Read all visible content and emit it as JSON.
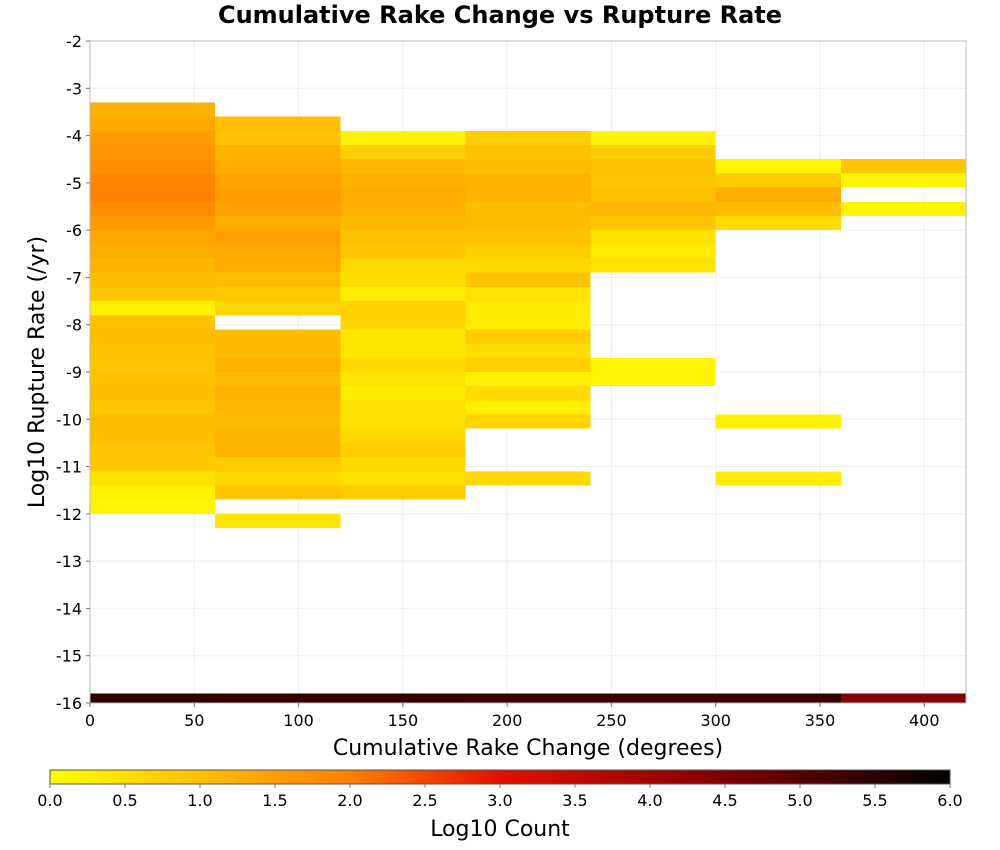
{
  "chart_data": {
    "type": "heatmap",
    "title": "Cumulative Rake Change vs Rupture Rate",
    "xlabel": "Cumulative Rake Change (degrees)",
    "ylabel": "Log10 Rupture Rate (/yr)",
    "xlim": [
      0,
      420
    ],
    "ylim": [
      -16,
      -2
    ],
    "x_ticks": [
      0,
      50,
      100,
      150,
      200,
      250,
      300,
      350,
      400
    ],
    "y_ticks": [
      -2,
      -3,
      -4,
      -5,
      -6,
      -7,
      -8,
      -9,
      -10,
      -11,
      -12,
      -13,
      -14,
      -15,
      -16
    ],
    "x_bin_width": 60,
    "y_bin_height": 0.3,
    "grid": true,
    "colorbar": {
      "label": "Log10 Count",
      "range": [
        0,
        6
      ],
      "ticks": [
        "0.0",
        "0.5",
        "1.0",
        "1.5",
        "2.0",
        "2.5",
        "3.0",
        "3.5",
        "4.0",
        "4.5",
        "5.0",
        "5.5",
        "6.0"
      ],
      "stops": [
        {
          "v": 0.0,
          "color": "#ffff00"
        },
        {
          "v": 2.0,
          "color": "#ff7f00"
        },
        {
          "v": 3.0,
          "color": "#e01000"
        },
        {
          "v": 4.5,
          "color": "#800000"
        },
        {
          "v": 6.0,
          "color": "#000000"
        }
      ]
    },
    "columns": [
      {
        "x0": 0,
        "x1": 60,
        "cells": [
          {
            "y0": -3.6,
            "y1": -3.3,
            "v": 1.25
          },
          {
            "y0": -3.9,
            "y1": -3.6,
            "v": 1.35
          },
          {
            "y0": -4.2,
            "y1": -3.9,
            "v": 1.55
          },
          {
            "y0": -4.5,
            "y1": -4.2,
            "v": 1.65
          },
          {
            "y0": -4.8,
            "y1": -4.5,
            "v": 1.75
          },
          {
            "y0": -5.1,
            "y1": -4.8,
            "v": 1.9
          },
          {
            "y0": -5.4,
            "y1": -5.1,
            "v": 1.95
          },
          {
            "y0": -5.7,
            "y1": -5.4,
            "v": 1.8
          },
          {
            "y0": -6.0,
            "y1": -5.7,
            "v": 1.55
          },
          {
            "y0": -6.3,
            "y1": -6.0,
            "v": 1.4
          },
          {
            "y0": -6.6,
            "y1": -6.3,
            "v": 1.3
          },
          {
            "y0": -6.9,
            "y1": -6.6,
            "v": 1.15
          },
          {
            "y0": -7.2,
            "y1": -6.9,
            "v": 1.0
          },
          {
            "y0": -7.5,
            "y1": -7.2,
            "v": 0.9
          },
          {
            "y0": -7.8,
            "y1": -7.5,
            "v": 0.2
          },
          {
            "y0": -8.1,
            "y1": -7.8,
            "v": 0.95
          },
          {
            "y0": -8.4,
            "y1": -8.1,
            "v": 1.0
          },
          {
            "y0": -8.7,
            "y1": -8.4,
            "v": 0.95
          },
          {
            "y0": -9.0,
            "y1": -8.7,
            "v": 0.9
          },
          {
            "y0": -9.3,
            "y1": -9.0,
            "v": 0.95
          },
          {
            "y0": -9.6,
            "y1": -9.3,
            "v": 1.0
          },
          {
            "y0": -9.9,
            "y1": -9.6,
            "v": 0.9
          },
          {
            "y0": -10.2,
            "y1": -9.9,
            "v": 1.05
          },
          {
            "y0": -10.5,
            "y1": -10.2,
            "v": 1.0
          },
          {
            "y0": -10.8,
            "y1": -10.5,
            "v": 0.9
          },
          {
            "y0": -11.1,
            "y1": -10.8,
            "v": 0.85
          },
          {
            "y0": -11.4,
            "y1": -11.1,
            "v": 0.45
          },
          {
            "y0": -11.7,
            "y1": -11.4,
            "v": 0.2
          },
          {
            "y0": -12.0,
            "y1": -11.7,
            "v": 0.15
          },
          {
            "y0": -16.0,
            "y1": -15.8,
            "v": 5.45
          }
        ]
      },
      {
        "x0": 60,
        "x1": 120,
        "cells": [
          {
            "y0": -3.9,
            "y1": -3.6,
            "v": 1.0
          },
          {
            "y0": -4.2,
            "y1": -3.9,
            "v": 0.95
          },
          {
            "y0": -4.5,
            "y1": -4.2,
            "v": 1.2
          },
          {
            "y0": -4.8,
            "y1": -4.5,
            "v": 1.3
          },
          {
            "y0": -5.1,
            "y1": -4.8,
            "v": 1.45
          },
          {
            "y0": -5.4,
            "y1": -5.1,
            "v": 1.55
          },
          {
            "y0": -5.7,
            "y1": -5.4,
            "v": 1.45
          },
          {
            "y0": -6.0,
            "y1": -5.7,
            "v": 1.3
          },
          {
            "y0": -6.3,
            "y1": -6.0,
            "v": 1.5
          },
          {
            "y0": -6.6,
            "y1": -6.3,
            "v": 1.35
          },
          {
            "y0": -6.9,
            "y1": -6.6,
            "v": 1.3
          },
          {
            "y0": -7.2,
            "y1": -6.9,
            "v": 1.0
          },
          {
            "y0": -7.5,
            "y1": -7.2,
            "v": 0.85
          },
          {
            "y0": -7.8,
            "y1": -7.5,
            "v": 0.65
          },
          {
            "y0": -8.4,
            "y1": -8.1,
            "v": 1.05
          },
          {
            "y0": -8.7,
            "y1": -8.4,
            "v": 1.1
          },
          {
            "y0": -9.0,
            "y1": -8.7,
            "v": 1.2
          },
          {
            "y0": -9.3,
            "y1": -9.0,
            "v": 1.05
          },
          {
            "y0": -9.6,
            "y1": -9.3,
            "v": 1.2
          },
          {
            "y0": -9.9,
            "y1": -9.6,
            "v": 1.1
          },
          {
            "y0": -10.2,
            "y1": -9.9,
            "v": 1.0
          },
          {
            "y0": -10.5,
            "y1": -10.2,
            "v": 1.15
          },
          {
            "y0": -10.8,
            "y1": -10.5,
            "v": 1.15
          },
          {
            "y0": -11.1,
            "y1": -10.8,
            "v": 0.8
          },
          {
            "y0": -11.4,
            "y1": -11.1,
            "v": 0.6
          },
          {
            "y0": -11.7,
            "y1": -11.4,
            "v": 0.9
          },
          {
            "y0": -12.3,
            "y1": -12.0,
            "v": 0.4
          },
          {
            "y0": -16.0,
            "y1": -15.8,
            "v": 5.4
          }
        ]
      },
      {
        "x0": 120,
        "x1": 180,
        "cells": [
          {
            "y0": -4.2,
            "y1": -3.9,
            "v": 0.2
          },
          {
            "y0": -4.5,
            "y1": -4.2,
            "v": 0.75
          },
          {
            "y0": -4.8,
            "y1": -4.5,
            "v": 1.1
          },
          {
            "y0": -5.1,
            "y1": -4.8,
            "v": 1.25
          },
          {
            "y0": -5.4,
            "y1": -5.1,
            "v": 1.3
          },
          {
            "y0": -5.7,
            "y1": -5.4,
            "v": 1.25
          },
          {
            "y0": -6.0,
            "y1": -5.7,
            "v": 1.1
          },
          {
            "y0": -6.3,
            "y1": -6.0,
            "v": 0.95
          },
          {
            "y0": -6.6,
            "y1": -6.3,
            "v": 0.9
          },
          {
            "y0": -6.9,
            "y1": -6.6,
            "v": 0.6
          },
          {
            "y0": -7.2,
            "y1": -6.9,
            "v": 0.55
          },
          {
            "y0": -7.5,
            "y1": -7.2,
            "v": 0.3
          },
          {
            "y0": -7.8,
            "y1": -7.5,
            "v": 0.7
          },
          {
            "y0": -8.1,
            "y1": -7.8,
            "v": 0.65
          },
          {
            "y0": -8.4,
            "y1": -8.1,
            "v": 0.35
          },
          {
            "y0": -8.7,
            "y1": -8.4,
            "v": 0.4
          },
          {
            "y0": -9.0,
            "y1": -8.7,
            "v": 0.6
          },
          {
            "y0": -9.3,
            "y1": -9.0,
            "v": 0.45
          },
          {
            "y0": -9.6,
            "y1": -9.3,
            "v": 0.3
          },
          {
            "y0": -9.9,
            "y1": -9.6,
            "v": 0.5
          },
          {
            "y0": -10.2,
            "y1": -9.9,
            "v": 0.45
          },
          {
            "y0": -10.5,
            "y1": -10.2,
            "v": 0.6
          },
          {
            "y0": -10.8,
            "y1": -10.5,
            "v": 0.75
          },
          {
            "y0": -11.1,
            "y1": -10.8,
            "v": 0.6
          },
          {
            "y0": -11.4,
            "y1": -11.1,
            "v": 0.5
          },
          {
            "y0": -11.7,
            "y1": -11.4,
            "v": 0.8
          },
          {
            "y0": -16.0,
            "y1": -15.8,
            "v": 5.4
          }
        ]
      },
      {
        "x0": 180,
        "x1": 240,
        "cells": [
          {
            "y0": -4.2,
            "y1": -3.9,
            "v": 0.8
          },
          {
            "y0": -4.5,
            "y1": -4.2,
            "v": 0.95
          },
          {
            "y0": -4.8,
            "y1": -4.5,
            "v": 1.0
          },
          {
            "y0": -5.1,
            "y1": -4.8,
            "v": 1.2
          },
          {
            "y0": -5.4,
            "y1": -5.1,
            "v": 1.2
          },
          {
            "y0": -5.7,
            "y1": -5.4,
            "v": 1.05
          },
          {
            "y0": -6.0,
            "y1": -5.7,
            "v": 1.05
          },
          {
            "y0": -6.3,
            "y1": -6.0,
            "v": 0.95
          },
          {
            "y0": -6.6,
            "y1": -6.3,
            "v": 0.8
          },
          {
            "y0": -6.9,
            "y1": -6.6,
            "v": 0.6
          },
          {
            "y0": -7.2,
            "y1": -6.9,
            "v": 0.95
          },
          {
            "y0": -7.5,
            "y1": -7.2,
            "v": 0.45
          },
          {
            "y0": -7.8,
            "y1": -7.5,
            "v": 0.3
          },
          {
            "y0": -8.1,
            "y1": -7.8,
            "v": 0.3
          },
          {
            "y0": -8.4,
            "y1": -8.1,
            "v": 0.8
          },
          {
            "y0": -8.7,
            "y1": -8.4,
            "v": 0.55
          },
          {
            "y0": -9.0,
            "y1": -8.7,
            "v": 0.75
          },
          {
            "y0": -9.3,
            "y1": -9.0,
            "v": 0.25
          },
          {
            "y0": -9.6,
            "y1": -9.3,
            "v": 0.6
          },
          {
            "y0": -9.9,
            "y1": -9.6,
            "v": 0.25
          },
          {
            "y0": -10.2,
            "y1": -9.9,
            "v": 0.65
          },
          {
            "y0": -11.4,
            "y1": -11.1,
            "v": 0.6
          },
          {
            "y0": -16.0,
            "y1": -15.8,
            "v": 5.3
          }
        ]
      },
      {
        "x0": 240,
        "x1": 300,
        "cells": [
          {
            "y0": -4.2,
            "y1": -3.9,
            "v": 0.15
          },
          {
            "y0": -4.5,
            "y1": -4.2,
            "v": 0.8
          },
          {
            "y0": -4.8,
            "y1": -4.5,
            "v": 0.95
          },
          {
            "y0": -5.1,
            "y1": -4.8,
            "v": 0.9
          },
          {
            "y0": -5.4,
            "y1": -5.1,
            "v": 0.95
          },
          {
            "y0": -5.7,
            "y1": -5.4,
            "v": 1.1
          },
          {
            "y0": -6.0,
            "y1": -5.7,
            "v": 0.9
          },
          {
            "y0": -6.3,
            "y1": -6.0,
            "v": 0.45
          },
          {
            "y0": -6.6,
            "y1": -6.3,
            "v": 0.3
          },
          {
            "y0": -6.9,
            "y1": -6.6,
            "v": 0.45
          },
          {
            "y0": -9.0,
            "y1": -8.7,
            "v": 0.15
          },
          {
            "y0": -9.3,
            "y1": -9.0,
            "v": 0.15
          },
          {
            "y0": -16.0,
            "y1": -15.8,
            "v": 5.3
          }
        ]
      },
      {
        "x0": 300,
        "x1": 360,
        "cells": [
          {
            "y0": -4.8,
            "y1": -4.5,
            "v": 0.15
          },
          {
            "y0": -5.1,
            "y1": -4.8,
            "v": 0.85
          },
          {
            "y0": -5.4,
            "y1": -5.1,
            "v": 1.3
          },
          {
            "y0": -5.7,
            "y1": -5.4,
            "v": 1.05
          },
          {
            "y0": -6.0,
            "y1": -5.7,
            "v": 0.55
          },
          {
            "y0": -10.2,
            "y1": -9.9,
            "v": 0.2
          },
          {
            "y0": -11.4,
            "y1": -11.1,
            "v": 0.3
          },
          {
            "y0": -16.0,
            "y1": -15.8,
            "v": 5.35
          }
        ]
      },
      {
        "x0": 360,
        "x1": 420,
        "cells": [
          {
            "y0": -4.8,
            "y1": -4.5,
            "v": 0.9
          },
          {
            "y0": -5.1,
            "y1": -4.8,
            "v": 0.1
          },
          {
            "y0": -5.7,
            "y1": -5.4,
            "v": 0.15
          },
          {
            "y0": -16.0,
            "y1": -15.8,
            "v": 4.45
          }
        ]
      }
    ]
  }
}
